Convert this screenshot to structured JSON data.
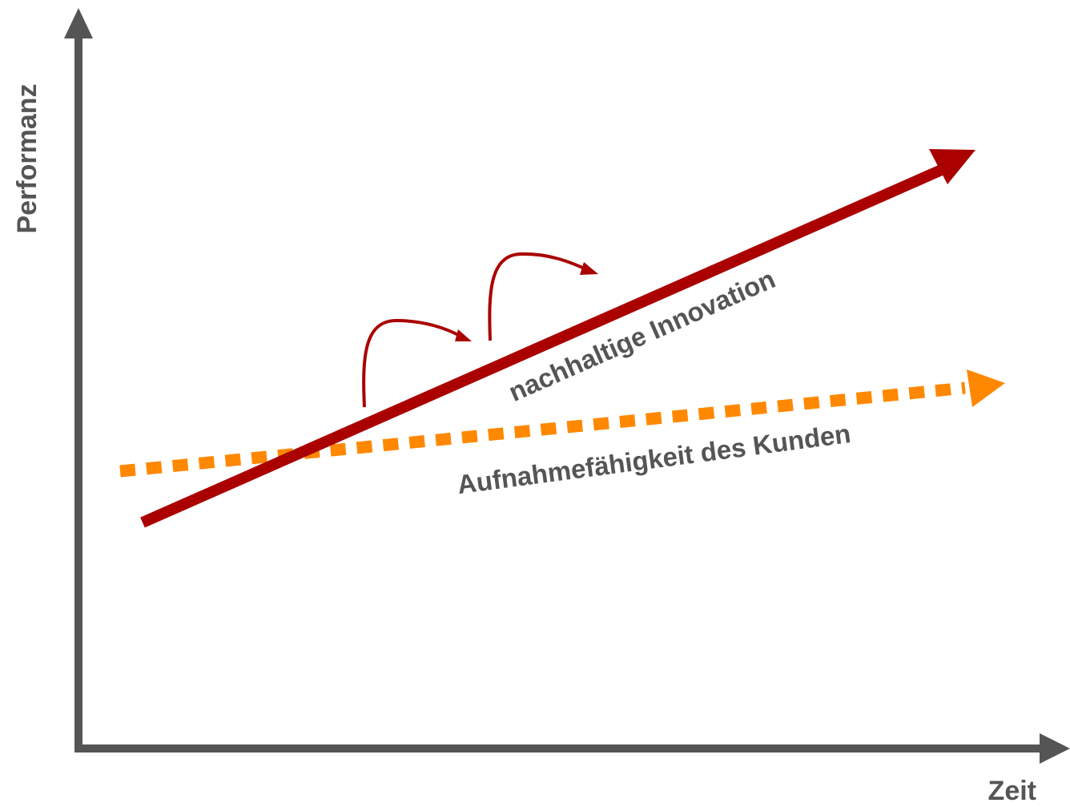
{
  "diagram": {
    "y_axis_label": "Performanz",
    "x_axis_label": "Zeit",
    "sustaining_label": "nachhaltige Innovation",
    "absorption_label": "Aufnahmefähigkeit des Kunden"
  },
  "colors": {
    "axis": "#555555",
    "label_text": "#555555",
    "sustaining_innovation": "#AA0000",
    "customer_absorption": "#FF8800"
  }
}
